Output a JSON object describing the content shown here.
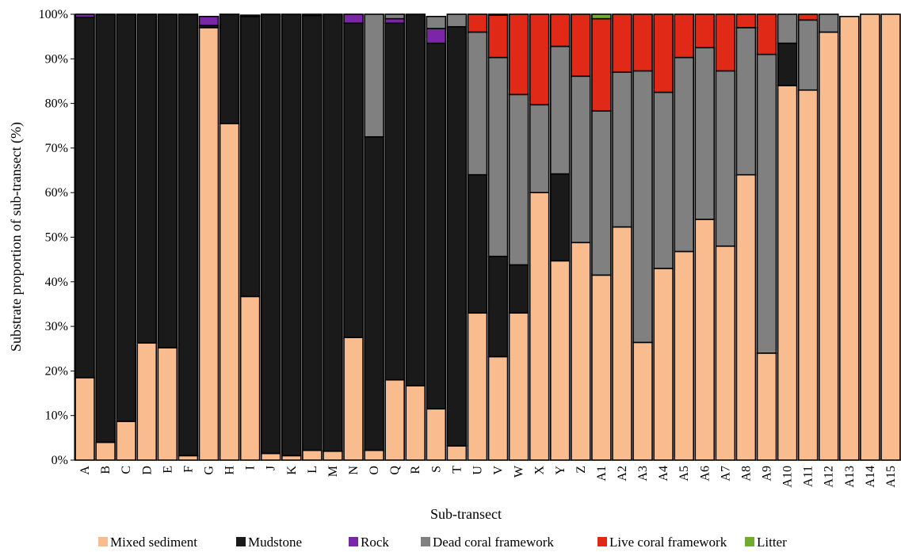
{
  "chart_data": {
    "type": "bar",
    "stacked": true,
    "title": "",
    "xlabel": "Sub-transect",
    "ylabel": "Substrate proportion of sub-transect (%)",
    "ylim": [
      0,
      100
    ],
    "yticks": [
      "0%",
      "10%",
      "20%",
      "30%",
      "40%",
      "50%",
      "60%",
      "70%",
      "80%",
      "90%",
      "100%"
    ],
    "grid": false,
    "legend_position": "bottom",
    "categories": [
      "A",
      "B",
      "C",
      "D",
      "E",
      "F",
      "G",
      "H",
      "I",
      "J",
      "K",
      "L",
      "M",
      "N",
      "O",
      "Q",
      "R",
      "S",
      "T",
      "U",
      "V",
      "W",
      "X",
      "Y",
      "Z",
      "A1",
      "A2",
      "A3",
      "A4",
      "A5",
      "A6",
      "A7",
      "A8",
      "A9",
      "A10",
      "A11",
      "A12",
      "A13",
      "A14",
      "A15"
    ],
    "series": [
      {
        "name": "Mixed sediment",
        "color": "#f8bc8f",
        "values": [
          18.5,
          4,
          8.7,
          26.3,
          25.2,
          1,
          97,
          75.5,
          36.7,
          1.5,
          1,
          2.2,
          2,
          27.5,
          2.2,
          18,
          16.7,
          11.5,
          3.2,
          33,
          23.2,
          33,
          60,
          44.7,
          48.8,
          41.5,
          52.3,
          26.4,
          43,
          46.8,
          54,
          48,
          64,
          24,
          84,
          83,
          96,
          99.5,
          100,
          100
        ]
      },
      {
        "name": "Mudstone",
        "color": "#1a1a1a",
        "values": [
          80.8,
          96,
          91.3,
          73.7,
          74.8,
          99,
          0.5,
          24.5,
          62.8,
          98.5,
          99,
          97.5,
          98,
          70.5,
          70.3,
          80,
          83.3,
          82,
          94,
          31,
          22.5,
          10.8,
          0,
          19.5,
          0,
          0,
          0,
          0,
          0,
          0,
          0,
          0,
          0,
          0,
          9.5,
          0,
          0,
          0,
          0,
          0
        ]
      },
      {
        "name": "Rock",
        "color": "#7b25a8",
        "values": [
          0.7,
          0,
          0,
          0,
          0,
          0,
          2,
          0,
          0,
          0,
          0,
          0,
          0,
          2,
          0,
          1,
          0,
          3.3,
          0,
          0,
          0,
          0,
          0,
          0,
          0,
          0,
          0,
          0,
          0,
          0,
          0,
          0,
          0,
          0,
          0,
          0,
          0,
          0,
          0,
          0
        ]
      },
      {
        "name": "Dead coral framework",
        "color": "#808080",
        "values": [
          0,
          0,
          0,
          0,
          0,
          0,
          0,
          0,
          0.3,
          0,
          0,
          0.3,
          0,
          0,
          27.5,
          1,
          0,
          2.7,
          2.8,
          32,
          44.6,
          38.2,
          19.7,
          28.6,
          37.3,
          36.8,
          34.7,
          60.9,
          39.5,
          43.5,
          38.5,
          39.3,
          33,
          67,
          6.5,
          15.7,
          4,
          0,
          0,
          0
        ]
      },
      {
        "name": "Live coral framework",
        "color": "#e02a17",
        "values": [
          0,
          0,
          0,
          0,
          0,
          0,
          0,
          0,
          0,
          0,
          0,
          0,
          0,
          0,
          0,
          0,
          0,
          0,
          0,
          4,
          9.5,
          18,
          20.3,
          7.2,
          13.9,
          20.7,
          13,
          12.7,
          17.5,
          9.7,
          7.5,
          12.7,
          3,
          9,
          0,
          1.3,
          0,
          0,
          0,
          0
        ]
      },
      {
        "name": "Litter",
        "color": "#70ad2f",
        "values": [
          0,
          0,
          0,
          0,
          0,
          0,
          0,
          0,
          0,
          0,
          0,
          0,
          0,
          0,
          0,
          0,
          0,
          0,
          0,
          0,
          0.2,
          0,
          0,
          0,
          0,
          1,
          0,
          0,
          0,
          0,
          0,
          0,
          0,
          0,
          0,
          0,
          0,
          0,
          0,
          0
        ]
      }
    ]
  }
}
